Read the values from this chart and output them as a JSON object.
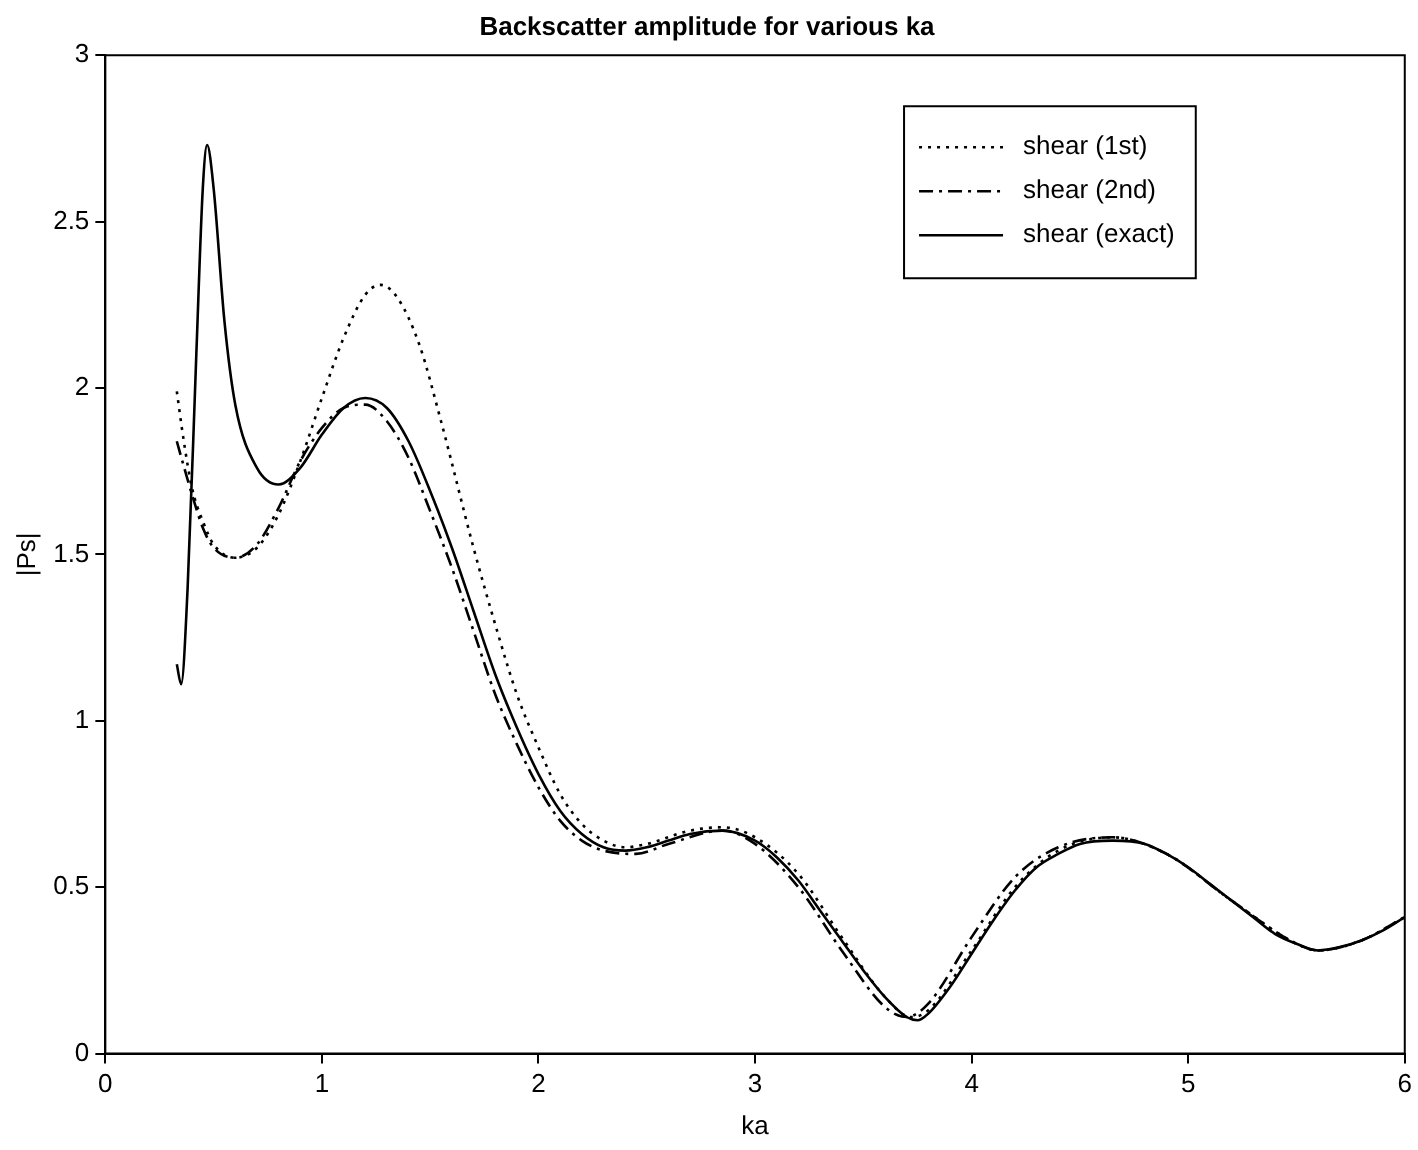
{
  "chart_data": {
    "type": "line",
    "title": "Backscatter amplitude for various ka",
    "xlabel": "ka",
    "ylabel": "|Ps|",
    "xlim": [
      0,
      6
    ],
    "xticks": [
      0,
      1,
      2,
      3,
      4,
      5,
      6
    ],
    "ylim": [
      0,
      3
    ],
    "yticks": [
      0,
      0.5,
      1,
      1.5,
      2,
      2.5,
      3
    ],
    "grid": false,
    "legend": "top right",
    "marker": "none",
    "series": [
      {
        "name": "shear (1st)",
        "color": "#000000",
        "line_style": "dotted",
        "x": [
          0.33,
          0.36,
          0.4,
          0.45,
          0.5,
          0.6,
          0.7,
          0.8,
          0.9,
          1.0,
          1.1,
          1.2,
          1.27,
          1.35,
          1.45,
          1.55,
          1.7,
          1.8,
          1.9,
          2.0,
          2.1,
          2.2,
          2.3,
          2.4,
          2.5,
          2.7,
          2.85,
          3.0,
          3.2,
          3.4,
          3.6,
          3.72,
          3.8,
          4.0,
          4.2,
          4.4,
          4.65,
          4.9,
          5.2,
          5.5,
          5.6,
          5.8,
          6.0
        ],
        "values": [
          1.99,
          1.85,
          1.7,
          1.6,
          1.53,
          1.49,
          1.52,
          1.62,
          1.78,
          1.97,
          2.15,
          2.28,
          2.31,
          2.27,
          2.13,
          1.9,
          1.52,
          1.29,
          1.08,
          0.92,
          0.78,
          0.69,
          0.64,
          0.62,
          0.63,
          0.67,
          0.68,
          0.65,
          0.54,
          0.35,
          0.17,
          0.11,
          0.13,
          0.31,
          0.5,
          0.61,
          0.65,
          0.6,
          0.46,
          0.33,
          0.31,
          0.34,
          0.41
        ]
      },
      {
        "name": "shear (2nd)",
        "color": "#000000",
        "line_style": "dashdot",
        "x": [
          0.33,
          0.36,
          0.4,
          0.45,
          0.5,
          0.6,
          0.7,
          0.8,
          0.9,
          1.0,
          1.1,
          1.2,
          1.3,
          1.4,
          1.5,
          1.6,
          1.7,
          1.8,
          1.9,
          2.0,
          2.1,
          2.2,
          2.3,
          2.45,
          2.6,
          2.85,
          3.0,
          3.2,
          3.4,
          3.6,
          3.7,
          3.8,
          4.0,
          4.2,
          4.4,
          4.65,
          4.9,
          5.2,
          5.5,
          5.6,
          5.8,
          6.0
        ],
        "values": [
          1.84,
          1.77,
          1.68,
          1.58,
          1.52,
          1.49,
          1.53,
          1.64,
          1.78,
          1.88,
          1.94,
          1.95,
          1.9,
          1.79,
          1.63,
          1.46,
          1.27,
          1.08,
          0.93,
          0.8,
          0.7,
          0.64,
          0.61,
          0.6,
          0.63,
          0.67,
          0.63,
          0.5,
          0.31,
          0.14,
          0.11,
          0.15,
          0.35,
          0.53,
          0.62,
          0.65,
          0.6,
          0.46,
          0.33,
          0.31,
          0.34,
          0.41
        ]
      },
      {
        "name": "shear (exact)",
        "color": "#000000",
        "line_style": "solid",
        "x": [
          0.33,
          0.35,
          0.38,
          0.42,
          0.45,
          0.47,
          0.5,
          0.55,
          0.6,
          0.7,
          0.8,
          0.9,
          1.0,
          1.1,
          1.2,
          1.3,
          1.4,
          1.5,
          1.6,
          1.7,
          1.8,
          1.9,
          2.0,
          2.1,
          2.2,
          2.3,
          2.4,
          2.5,
          2.6,
          2.7,
          2.85,
          3.0,
          3.1,
          3.2,
          3.3,
          3.4,
          3.5,
          3.6,
          3.7,
          3.75,
          3.8,
          3.9,
          4.0,
          4.1,
          4.2,
          4.3,
          4.4,
          4.5,
          4.65,
          4.8,
          4.9,
          5.0,
          5.1,
          5.2,
          5.3,
          5.4,
          5.5,
          5.6,
          5.7,
          5.8,
          5.9,
          6.0
        ],
        "values": [
          1.17,
          1.11,
          1.4,
          2.1,
          2.6,
          2.73,
          2.6,
          2.2,
          1.95,
          1.76,
          1.71,
          1.76,
          1.86,
          1.94,
          1.97,
          1.94,
          1.84,
          1.69,
          1.52,
          1.33,
          1.14,
          0.98,
          0.84,
          0.73,
          0.66,
          0.62,
          0.61,
          0.62,
          0.64,
          0.66,
          0.67,
          0.64,
          0.59,
          0.52,
          0.43,
          0.34,
          0.25,
          0.17,
          0.11,
          0.1,
          0.12,
          0.2,
          0.3,
          0.4,
          0.49,
          0.56,
          0.6,
          0.63,
          0.64,
          0.63,
          0.6,
          0.56,
          0.51,
          0.46,
          0.41,
          0.36,
          0.33,
          0.31,
          0.32,
          0.34,
          0.37,
          0.41
        ]
      }
    ]
  }
}
